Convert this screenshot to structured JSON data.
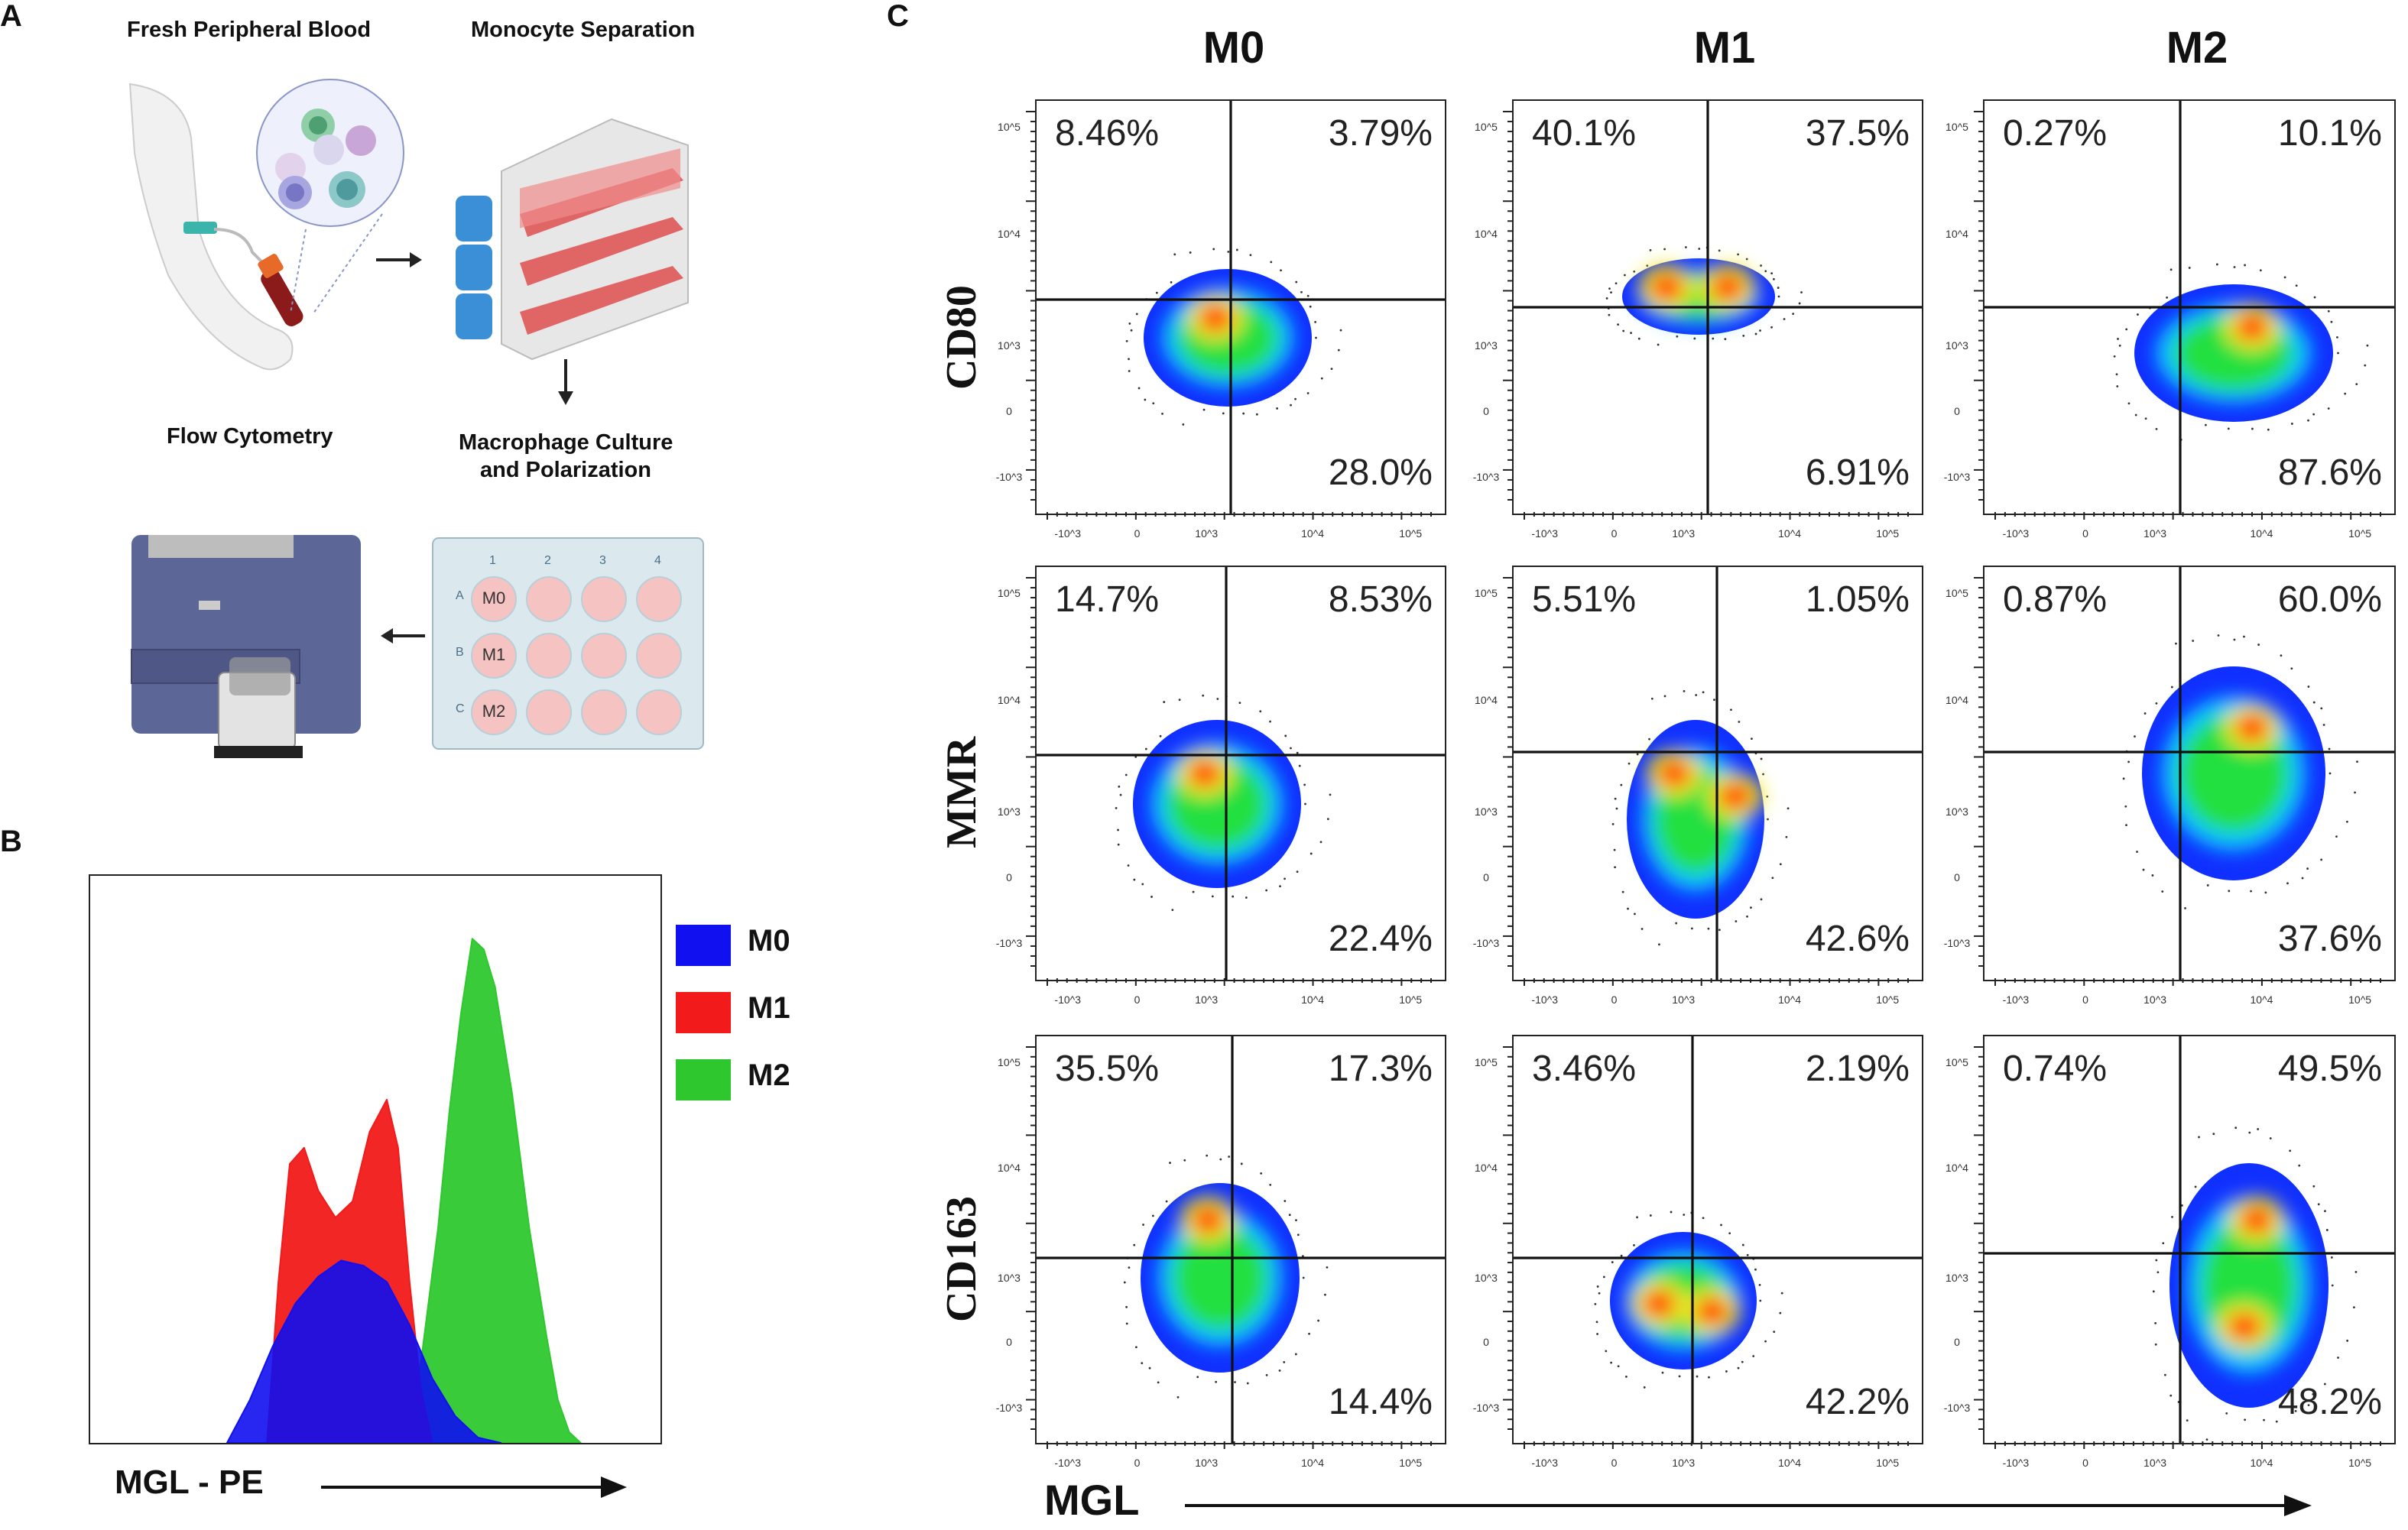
{
  "panel_labels": {
    "a": "A",
    "b": "B",
    "c": "C"
  },
  "panel_a": {
    "steps": {
      "blood": "Fresh Peripheral Blood",
      "separation": "Monocyte Separation",
      "culture_line1": "Macrophage Culture",
      "culture_line2": "and Polarization",
      "flow": "Flow Cytometry"
    },
    "plate": {
      "columns": [
        "1",
        "2",
        "3",
        "4"
      ],
      "rows": [
        "A",
        "B",
        "C"
      ],
      "wells": [
        "M0",
        "M1",
        "M2"
      ]
    }
  },
  "colors": {
    "m0": "#1010f0",
    "m1": "#f21a1a",
    "m2": "#2ec82e"
  },
  "chart_data": [
    {
      "type": "area",
      "title": "",
      "xlabel": "MGL - PE",
      "ylabel": "",
      "x_units": "relative channel (0-100)",
      "y_units": "% of max",
      "legend": "right",
      "series": [
        {
          "name": "M0",
          "color": "#1010f0",
          "points": [
            [
              24,
              0
            ],
            [
              28,
              8
            ],
            [
              32,
              18
            ],
            [
              36,
              26
            ],
            [
              40,
              31
            ],
            [
              44,
              34
            ],
            [
              48,
              33
            ],
            [
              52,
              30
            ],
            [
              56,
              22
            ],
            [
              60,
              12
            ],
            [
              64,
              5
            ],
            [
              68,
              1
            ],
            [
              72,
              0
            ]
          ]
        },
        {
          "name": "M1",
          "color": "#f21a1a",
          "points": [
            [
              31,
              0
            ],
            [
              33,
              30
            ],
            [
              35,
              52
            ],
            [
              37.5,
              55
            ],
            [
              40,
              47
            ],
            [
              43,
              42
            ],
            [
              46,
              45
            ],
            [
              49,
              58
            ],
            [
              52,
              64
            ],
            [
              54,
              55
            ],
            [
              56,
              30
            ],
            [
              58,
              10
            ],
            [
              60,
              0
            ]
          ]
        },
        {
          "name": "M2",
          "color": "#2ec82e",
          "points": [
            [
              55,
              0
            ],
            [
              58,
              15
            ],
            [
              61,
              40
            ],
            [
              63,
              62
            ],
            [
              65,
              80
            ],
            [
              67,
              94
            ],
            [
              69,
              92
            ],
            [
              71,
              85
            ],
            [
              74,
              65
            ],
            [
              77,
              40
            ],
            [
              80,
              20
            ],
            [
              82,
              8
            ],
            [
              84,
              2
            ],
            [
              86,
              0
            ]
          ]
        }
      ]
    },
    {
      "type": "scatter",
      "subtype": "flow-cytometry quadrant density plots",
      "xlabel": "MGL",
      "columns": [
        "M0",
        "M1",
        "M2"
      ],
      "rows": [
        "CD80",
        "MMR",
        "CD163"
      ],
      "x_ticks": [
        "-10^3",
        "0",
        "10^3",
        "10^4",
        "10^5"
      ],
      "y_ticks": [
        "10^5",
        "10^4",
        "10^3",
        "0",
        "-10^3"
      ],
      "quadrant_order": [
        "upper-left",
        "upper-right",
        "lower-right"
      ],
      "panels": [
        [
          [
            "8.46%",
            "3.79%",
            "28.0%"
          ],
          [
            "40.1%",
            "37.5%",
            "6.91%"
          ],
          [
            "0.27%",
            "10.1%",
            "87.6%"
          ]
        ],
        [
          [
            "14.7%",
            "8.53%",
            "22.4%"
          ],
          [
            "5.51%",
            "1.05%",
            "42.6%"
          ],
          [
            "0.87%",
            "60.0%",
            "37.6%"
          ]
        ],
        [
          [
            "35.5%",
            "17.3%",
            "14.4%"
          ],
          [
            "3.46%",
            "2.19%",
            "42.2%"
          ],
          [
            "0.74%",
            "49.5%",
            "48.2%"
          ]
        ]
      ]
    }
  ]
}
